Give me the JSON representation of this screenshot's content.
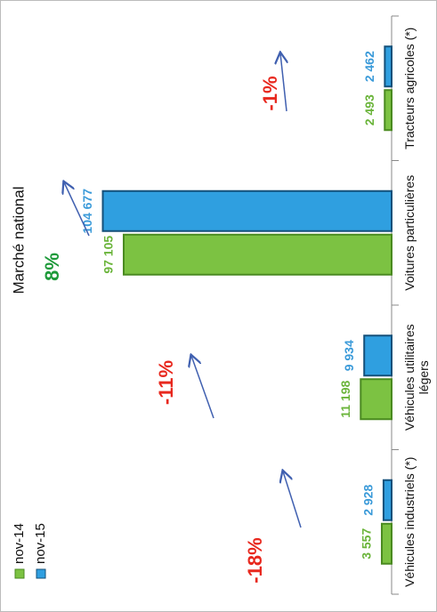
{
  "chart_data": {
    "type": "bar",
    "categories": [
      "Véhicules industriels (*)",
      "Véhicules utilitaires légers",
      "Voitures particulières",
      "Tracteurs agricoles (*)"
    ],
    "series": [
      {
        "name": "nov-14",
        "color": "#7cc242",
        "values": [
          3557,
          11198,
          97105,
          2493
        ],
        "value_labels": [
          "3 557",
          "11 198",
          "97 105",
          "2 493"
        ]
      },
      {
        "name": "nov-15",
        "color": "#2f9fe0",
        "values": [
          2928,
          9934,
          104677,
          2462
        ],
        "value_labels": [
          "2 928",
          "9 934",
          "104 677",
          "2 462"
        ]
      }
    ],
    "ylim": [
      0,
      110000
    ],
    "title": "Marché national",
    "annotations": [
      {
        "text": "-18%",
        "color": "#e8281e"
      },
      {
        "text": "-11%",
        "color": "#e8281e"
      },
      {
        "text": "8%",
        "color": "#1e9a3a"
      },
      {
        "text": "-1%",
        "color": "#e8281e"
      }
    ]
  }
}
